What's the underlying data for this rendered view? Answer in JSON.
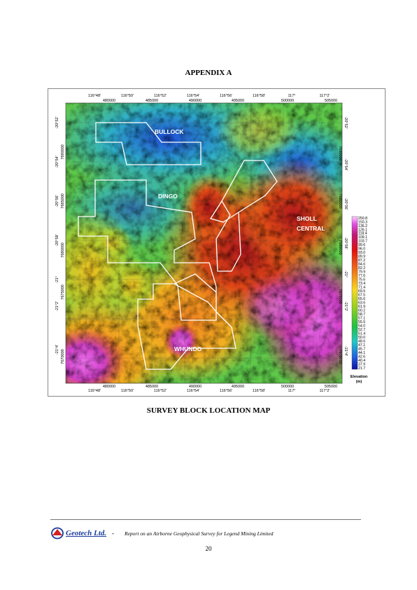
{
  "page": {
    "heading": "APPENDIX A",
    "caption": "SURVEY BLOCK LOCATION MAP",
    "page_number": "20"
  },
  "footer": {
    "logo_text": "Geotech Ltd.",
    "separator": "-",
    "report_title": "Report on an Airborne Geophysical Survey for Legend Mining Limited"
  },
  "map": {
    "lon_labels": [
      "116°48'",
      "116°50'",
      "116°52'",
      "116°54'",
      "116°56'",
      "116°58'",
      "117°",
      "117°2'"
    ],
    "easting_labels": [
      "480000",
      "485000",
      "490000",
      "495000",
      "500000",
      "505000"
    ],
    "lat_labels": [
      "-20°52'",
      "-20°54'",
      "-20°56'",
      "-20°58'",
      "-21°",
      "-21°2'",
      "-21°4'"
    ],
    "northing_labels": [
      "7690000",
      "7685000",
      "7680000",
      "7675000",
      "7670000"
    ],
    "blocks": [
      "BULLOCK",
      "DINGO",
      "SHOLL",
      "CENTRAL",
      "WHUNDO"
    ],
    "legend": {
      "values": [
        "250.8",
        "150.3",
        "136.2",
        "126.1",
        "118.4",
        "109.1",
        "103.7",
        "99.6",
        "96.0",
        "93.0",
        "89.9",
        "87.2",
        "84.6",
        "82.2",
        "79.9",
        "77.6",
        "75.6",
        "73.4",
        "71.4",
        "69.5",
        "67.5",
        "65.6",
        "63.6",
        "61.9",
        "60.2",
        "58.7",
        "57.1",
        "55.5",
        "54.0",
        "52.7",
        "51.4",
        "50.0",
        "48.6",
        "47.1",
        "45.7",
        "44.1",
        "42.6",
        "40.4",
        "37.9",
        "21.7"
      ],
      "title": "Elevation",
      "unit": "(m)"
    }
  }
}
